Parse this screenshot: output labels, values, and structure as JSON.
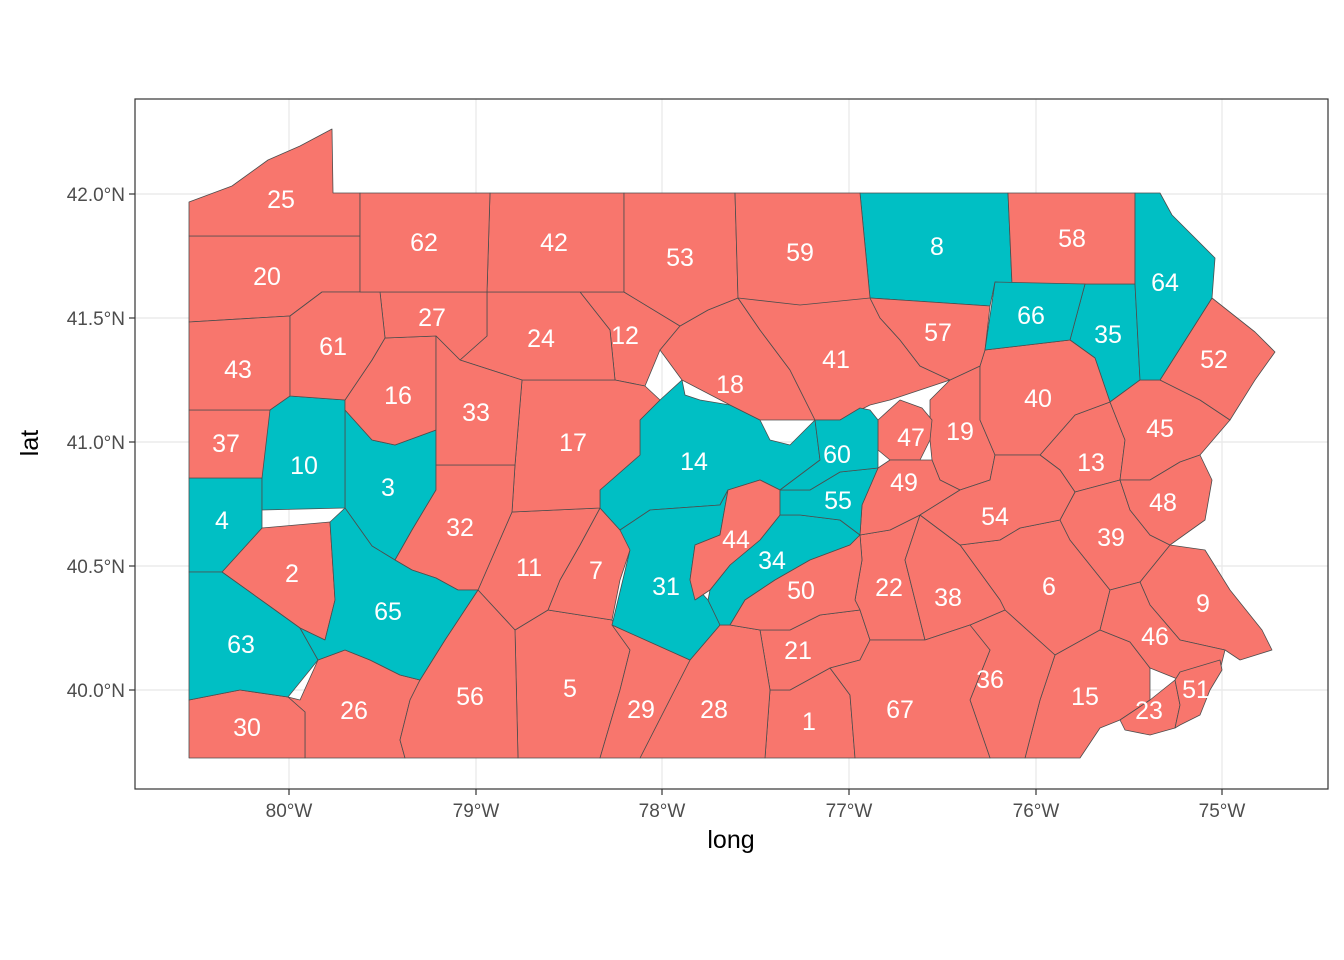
{
  "colors": {
    "fill_a": "#F8766D",
    "fill_b": "#00BFC4",
    "border": "#4d4d4d",
    "grid": "#ebebeb",
    "label": "#ffffff"
  },
  "axes": {
    "xlabel": "long",
    "ylabel": "lat",
    "x_ticks": [
      "80°W",
      "79°W",
      "78°W",
      "77°W",
      "76°W",
      "75°W"
    ],
    "y_ticks": [
      "40.0°N",
      "40.5°N",
      "41.0°N",
      "41.5°N",
      "42.0°N"
    ]
  },
  "chart_data": {
    "type": "map",
    "region": "Pennsylvania counties",
    "xlabel": "long",
    "ylabel": "lat",
    "xlim": [
      -80.8,
      -74.6
    ],
    "ylim": [
      39.6,
      42.4
    ],
    "x_tick_values": [
      -80,
      -79,
      -78,
      -77,
      -76,
      -75
    ],
    "y_tick_values": [
      40.0,
      40.5,
      41.0,
      41.5,
      42.0
    ],
    "grid": true,
    "legend": "none",
    "counties": [
      {
        "label": "1",
        "group": "a"
      },
      {
        "label": "2",
        "group": "a"
      },
      {
        "label": "3",
        "group": "b"
      },
      {
        "label": "4",
        "group": "b"
      },
      {
        "label": "5",
        "group": "a"
      },
      {
        "label": "6",
        "group": "a"
      },
      {
        "label": "7",
        "group": "a"
      },
      {
        "label": "8",
        "group": "b"
      },
      {
        "label": "9",
        "group": "a"
      },
      {
        "label": "10",
        "group": "b"
      },
      {
        "label": "11",
        "group": "a"
      },
      {
        "label": "12",
        "group": "a"
      },
      {
        "label": "13",
        "group": "a"
      },
      {
        "label": "14",
        "group": "b"
      },
      {
        "label": "15",
        "group": "a"
      },
      {
        "label": "16",
        "group": "a"
      },
      {
        "label": "17",
        "group": "a"
      },
      {
        "label": "18",
        "group": "a"
      },
      {
        "label": "19",
        "group": "a"
      },
      {
        "label": "20",
        "group": "a"
      },
      {
        "label": "21",
        "group": "a"
      },
      {
        "label": "22",
        "group": "a"
      },
      {
        "label": "23",
        "group": "a"
      },
      {
        "label": "24",
        "group": "a"
      },
      {
        "label": "25",
        "group": "a"
      },
      {
        "label": "26",
        "group": "a"
      },
      {
        "label": "27",
        "group": "a"
      },
      {
        "label": "28",
        "group": "a"
      },
      {
        "label": "29",
        "group": "a"
      },
      {
        "label": "30",
        "group": "a"
      },
      {
        "label": "31",
        "group": "b"
      },
      {
        "label": "32",
        "group": "a"
      },
      {
        "label": "33",
        "group": "a"
      },
      {
        "label": "34",
        "group": "b"
      },
      {
        "label": "35",
        "group": "b"
      },
      {
        "label": "36",
        "group": "a"
      },
      {
        "label": "37",
        "group": "a"
      },
      {
        "label": "38",
        "group": "a"
      },
      {
        "label": "39",
        "group": "a"
      },
      {
        "label": "40",
        "group": "a"
      },
      {
        "label": "41",
        "group": "a"
      },
      {
        "label": "42",
        "group": "a"
      },
      {
        "label": "43",
        "group": "a"
      },
      {
        "label": "44",
        "group": "a"
      },
      {
        "label": "45",
        "group": "a"
      },
      {
        "label": "46",
        "group": "a"
      },
      {
        "label": "47",
        "group": "a"
      },
      {
        "label": "48",
        "group": "a"
      },
      {
        "label": "49",
        "group": "a"
      },
      {
        "label": "50",
        "group": "a"
      },
      {
        "label": "51",
        "group": "a"
      },
      {
        "label": "52",
        "group": "a"
      },
      {
        "label": "53",
        "group": "a"
      },
      {
        "label": "54",
        "group": "a"
      },
      {
        "label": "55",
        "group": "b"
      },
      {
        "label": "56",
        "group": "a"
      },
      {
        "label": "57",
        "group": "a"
      },
      {
        "label": "58",
        "group": "a"
      },
      {
        "label": "59",
        "group": "a"
      },
      {
        "label": "60",
        "group": "b"
      },
      {
        "label": "61",
        "group": "a"
      },
      {
        "label": "62",
        "group": "a"
      },
      {
        "label": "63",
        "group": "b"
      },
      {
        "label": "64",
        "group": "b"
      },
      {
        "label": "65",
        "group": "b"
      },
      {
        "label": "66",
        "group": "b"
      },
      {
        "label": "67",
        "group": "a"
      }
    ]
  }
}
